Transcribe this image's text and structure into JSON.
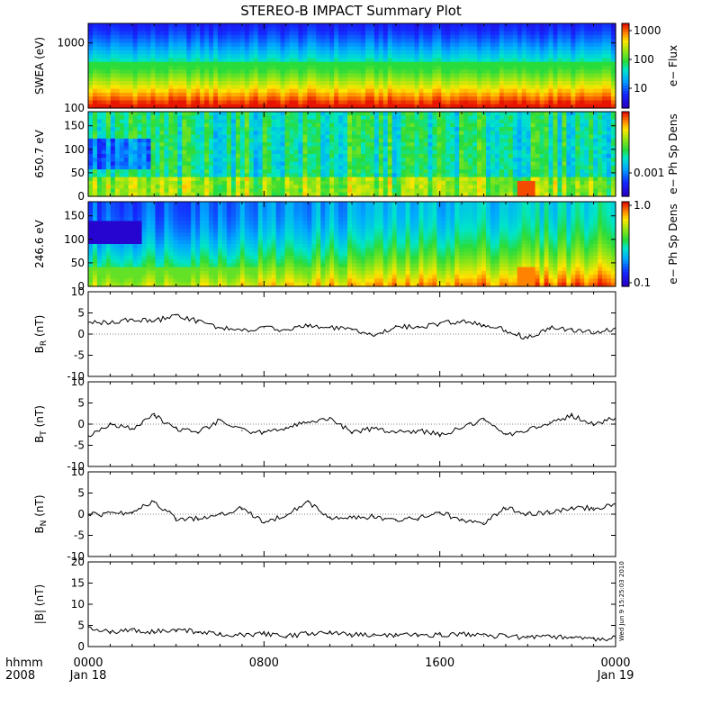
{
  "title": "STEREO-B IMPACT Summary Plot",
  "footer": {
    "hhmm_label": "hhmm",
    "year_label": "2008",
    "start_label": "Jan 18",
    "end_label": "Jan 19",
    "timestamp": "Wed Jun 9 15:25:03 2010"
  },
  "chart_data": [
    {
      "type": "heatmap",
      "ylabel": "SWEA (eV)",
      "ylim": [
        100,
        2000
      ],
      "yscale": "log",
      "yticks": [
        "1000",
        "100"
      ],
      "colorbar": {
        "label": "e− Flux",
        "ticks": [
          "1000",
          "100",
          "10"
        ],
        "scale": "log"
      },
      "description_colors": {
        "low": "#1a1aff",
        "mid": "#22e040",
        "high": "#ff2a00"
      }
    },
    {
      "type": "heatmap",
      "ylabel": "650.7 eV",
      "ylim": [
        0,
        180
      ],
      "yticks": [
        "150",
        "100",
        "50",
        "0"
      ],
      "colorbar": {
        "label": "e− Ph Sp Dens",
        "ticks": [
          "0.001"
        ],
        "scale": "log"
      }
    },
    {
      "type": "heatmap",
      "ylabel": "246.6 eV",
      "ylim": [
        0,
        180
      ],
      "yticks": [
        "150",
        "100",
        "50",
        "0"
      ],
      "colorbar": {
        "label": "e− Ph Sp Dens",
        "ticks": [
          "1.0",
          "0.1"
        ],
        "scale": "log"
      }
    },
    {
      "type": "line",
      "ylabel": "B",
      "ylabel_sub": "R",
      "ylabel_unit": "(nT)",
      "ylim": [
        -10,
        10
      ],
      "yticks": [
        "10",
        "5",
        "0",
        "-5",
        "-10"
      ],
      "x": [
        0,
        1,
        2,
        3,
        4,
        5,
        6,
        7,
        8,
        9,
        10,
        11,
        12,
        13,
        14,
        15,
        16,
        17,
        18,
        19,
        20,
        21,
        22,
        23,
        24
      ],
      "values": [
        3,
        2.5,
        3.5,
        3,
        4.5,
        3,
        1.5,
        0.8,
        1.5,
        1,
        2,
        1.5,
        1,
        -0.5,
        2,
        1.5,
        2.5,
        3,
        2,
        1,
        -1,
        1.5,
        1,
        0.5,
        1
      ]
    },
    {
      "type": "line",
      "ylabel": "B",
      "ylabel_sub": "T",
      "ylabel_unit": "(nT)",
      "ylim": [
        -10,
        10
      ],
      "yticks": [
        "10",
        "5",
        "0",
        "-5",
        "-10"
      ],
      "x": [
        0,
        1,
        2,
        3,
        4,
        5,
        6,
        7,
        8,
        9,
        10,
        11,
        12,
        13,
        14,
        15,
        16,
        17,
        18,
        19,
        20,
        21,
        22,
        23,
        24
      ],
      "values": [
        -3,
        0,
        -1,
        2,
        -1,
        -2,
        1,
        -1.5,
        -2,
        -1,
        0.5,
        1.5,
        -2,
        -1,
        -2,
        -1.5,
        -2.5,
        -1,
        1,
        -2.5,
        -1.5,
        0.5,
        2,
        0,
        1.5
      ]
    },
    {
      "type": "line",
      "ylabel": "B",
      "ylabel_sub": "N",
      "ylabel_unit": "(nT)",
      "ylim": [
        -10,
        10
      ],
      "yticks": [
        "10",
        "5",
        "0",
        "-5",
        "-10"
      ],
      "x": [
        0,
        1,
        2,
        3,
        4,
        5,
        6,
        7,
        8,
        9,
        10,
        11,
        12,
        13,
        14,
        15,
        16,
        17,
        18,
        19,
        20,
        21,
        22,
        23,
        24
      ],
      "values": [
        0,
        0,
        0.5,
        3,
        -1,
        -1,
        0,
        1.5,
        -2,
        0,
        3,
        -1,
        -1,
        -0.5,
        -1.5,
        -1,
        0.5,
        -1.5,
        -2,
        1.5,
        0,
        0.5,
        1.5,
        1.5,
        2
      ]
    },
    {
      "type": "line",
      "ylabel": "|B|",
      "ylabel_unit": "(nT)",
      "ylim": [
        0,
        20
      ],
      "yticks": [
        "20",
        "15",
        "10",
        "5",
        "0"
      ],
      "x": [
        0,
        1,
        2,
        3,
        4,
        5,
        6,
        7,
        8,
        9,
        10,
        11,
        12,
        13,
        14,
        15,
        16,
        17,
        18,
        19,
        20,
        21,
        22,
        23,
        24
      ],
      "values": [
        4.5,
        3.5,
        3.8,
        3.5,
        4,
        3.5,
        3,
        2.8,
        3,
        2.5,
        3,
        3.2,
        2.8,
        2.5,
        2.5,
        2.8,
        2.8,
        3,
        2.5,
        2.5,
        2,
        2.5,
        2,
        1.8,
        2
      ]
    }
  ],
  "xaxis": {
    "range": [
      0,
      24
    ],
    "ticks": [
      {
        "value": 0,
        "label": "0000"
      },
      {
        "value": 8,
        "label": "0800"
      },
      {
        "value": 16,
        "label": "1600"
      },
      {
        "value": 24,
        "label": "0000"
      }
    ]
  }
}
